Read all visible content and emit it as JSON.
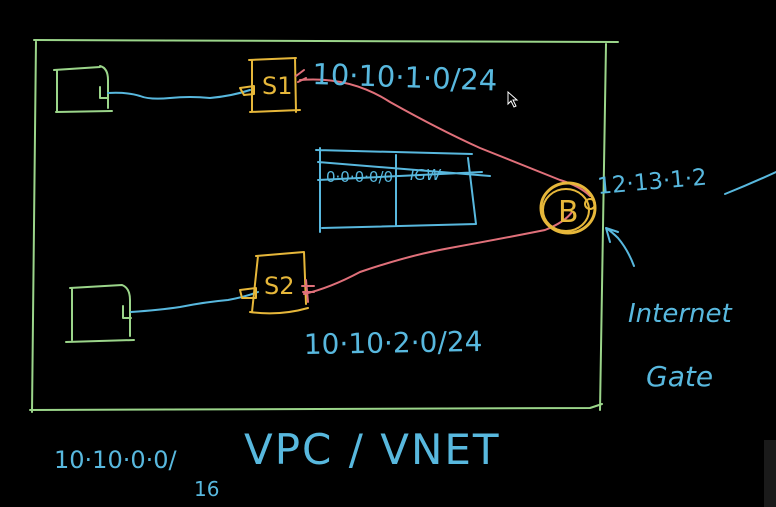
{
  "colors": {
    "background": "#000000",
    "vpc_border": "#9bd58a",
    "hosts": "#9bd58a",
    "subnets": "#e6b73a",
    "router_links": "#e0707a",
    "blue_ink": "#58b8de"
  },
  "subnet1": {
    "label": "S1",
    "cidr": "10·10·1·0/24"
  },
  "subnet2": {
    "label": "S2",
    "cidr": "10·10·2·0/24"
  },
  "route_table": {
    "destination": "0·0·0·0/0",
    "target": "IGW"
  },
  "router": {
    "label": "B",
    "ip": "12·13·1·2"
  },
  "internet_gateway": {
    "line1": "Internet",
    "line2": "Gate"
  },
  "vpc": {
    "cidr_main": "10·10·0·0/",
    "cidr_suffix": "16",
    "label": "VPC / VNET"
  },
  "icons": {
    "cursor": "mouse-pointer-icon",
    "arrow": "arrow-up-icon"
  }
}
